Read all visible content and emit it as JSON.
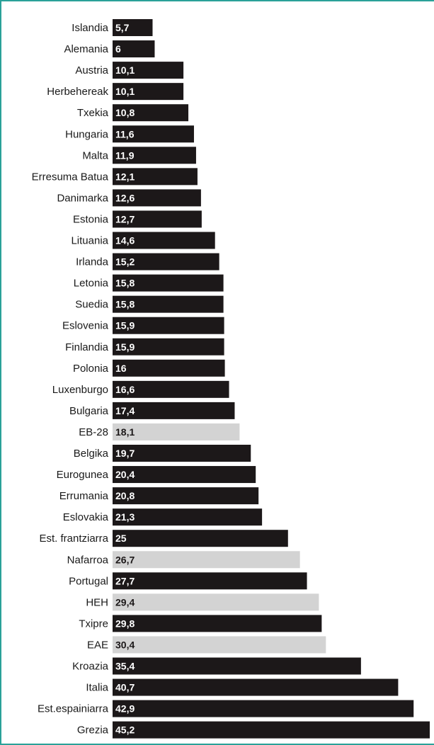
{
  "chart_data": {
    "type": "bar",
    "orientation": "horizontal",
    "title": "",
    "xlabel": "",
    "ylabel": "",
    "xlim": [
      0,
      45.2
    ],
    "grid": false,
    "legend": "none",
    "categories": [
      "Islandia",
      "Alemania",
      "Austria",
      "Herbehereak",
      "Txekia",
      "Hungaria",
      "Malta",
      "Erresuma Batua",
      "Danimarka",
      "Estonia",
      "Lituania",
      "Irlanda",
      "Letonia",
      "Suedia",
      "Eslovenia",
      "Finlandia",
      "Polonia",
      "Luxenburgo",
      "Bulgaria",
      "EB-28",
      "Belgika",
      "Eurogunea",
      "Errumania",
      "Eslovakia",
      "Est. frantziarra",
      "Nafarroa",
      "Portugal",
      "HEH",
      "Txipre",
      "EAE",
      "Kroazia",
      "Italia",
      "Est.espainiarra",
      "Grezia"
    ],
    "values": [
      5.7,
      6,
      10.1,
      10.1,
      10.8,
      11.6,
      11.9,
      12.1,
      12.6,
      12.7,
      14.6,
      15.2,
      15.8,
      15.8,
      15.9,
      15.9,
      16,
      16.6,
      17.4,
      18.1,
      19.7,
      20.4,
      20.8,
      21.3,
      25,
      26.7,
      27.7,
      29.4,
      29.8,
      30.4,
      35.4,
      40.7,
      42.9,
      45.2
    ],
    "value_labels": [
      "5,7",
      "6",
      "10,1",
      "10,1",
      "10,8",
      "11,6",
      "11,9",
      "12,1",
      "12,6",
      "12,7",
      "14,6",
      "15,2",
      "15,8",
      "15,8",
      "15,9",
      "15,9",
      "16",
      "16,6",
      "17,4",
      "18,1",
      "19,7",
      "20,4",
      "20,8",
      "21,3",
      "25",
      "26,7",
      "27,7",
      "29,4",
      "29,8",
      "30,4",
      "35,4",
      "40,7",
      "42,9",
      "45,2"
    ],
    "highlighted": [
      "EB-28",
      "Nafarroa",
      "HEH",
      "EAE"
    ],
    "colors": {
      "bar": "#1c1819",
      "bar_highlight": "#d3d3d3",
      "label_on_dark": "#ffffff",
      "label_on_light": "#1c1819",
      "frame": "#2aa198"
    }
  }
}
